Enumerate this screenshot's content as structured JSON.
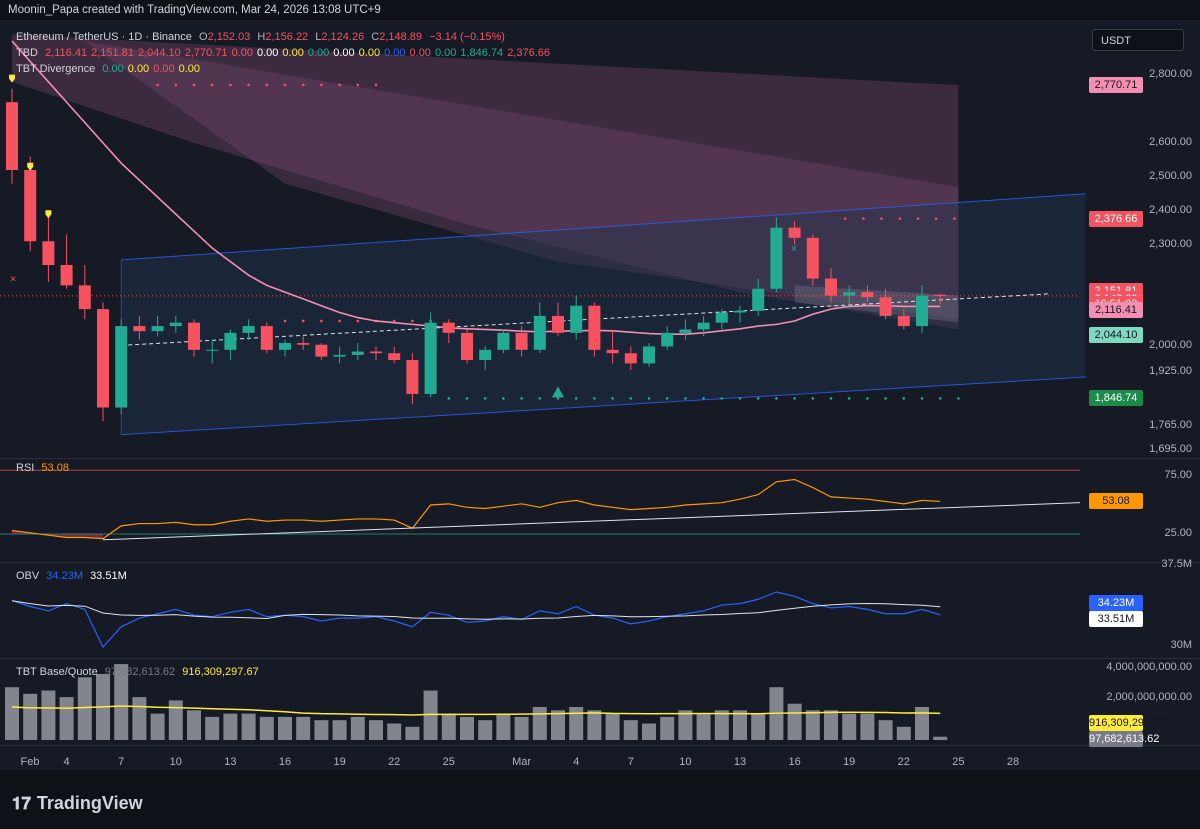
{
  "header": "Moonin_Papa created with TradingView.com, Mar 24, 2026 13:08 UTC+9",
  "symbol": {
    "name": "Ethereum / TetherUS · 1D · Binance",
    "o": "O",
    "o_val": "2,152.03",
    "h": "H",
    "h_val": "2,156.22",
    "l": "L",
    "l_val": "2,124.26",
    "c": "C",
    "c_val": "2,148.89",
    "chg": "−3.14 (−0.15%)"
  },
  "tbd": {
    "label": "TBD",
    "values": [
      "2,116.41",
      "2,151.81",
      "2,044.10",
      "2,770.71",
      "0.00",
      "0.00",
      "0.00",
      "0.00",
      "0.00",
      "0.00",
      "0.00",
      "0.00",
      "0.00",
      "1,846.74",
      "2,376.66"
    ],
    "colors": [
      "#f7525f",
      "#f7525f",
      "#f7525f",
      "#f7525f",
      "#f7525f",
      "#ffffff",
      "#ffeb3b",
      "#22ab94",
      "#ffffff",
      "#ffeb3b",
      "#2962ff",
      "#f7525f",
      "#22ab94",
      "#22ab94",
      "#f7525f"
    ]
  },
  "tbt_div": {
    "label": "TBT Divergence",
    "values": [
      "0.00",
      "0.00",
      "0.00",
      "0.00"
    ],
    "colors": [
      "#22ab94",
      "#ffeb3b",
      "#f7525f",
      "#ffeb3b"
    ]
  },
  "currency": "USDT",
  "price_axis": [
    "2,800.00",
    "2,600.00",
    "2,500.00",
    "2,400.00",
    "2,300.00",
    "2,000.00",
    "1,925.00",
    "1,765.00",
    "1,695.00"
  ],
  "price_badges": [
    {
      "text": "2,770.71",
      "bg": "#f48fb1",
      "fg": "#131722"
    },
    {
      "text": "2,376.66",
      "bg": "#f7525f",
      "fg": "#ffffff"
    },
    {
      "text": "2,151.81",
      "bg": "#f7525f",
      "fg": "#ffffff"
    },
    {
      "text": "2,148.89",
      "bg": "#f7525f",
      "fg": "#ffffff"
    },
    {
      "text": "19:51:03",
      "bg": "#f7525f",
      "fg": "#ffffff"
    },
    {
      "text": "2,116.41",
      "bg": "#f48fb1",
      "fg": "#131722"
    },
    {
      "text": "2,044.10",
      "bg": "#7fd8c0",
      "fg": "#131722"
    },
    {
      "text": "1,846.74",
      "bg": "#1e8a4a",
      "fg": "#ffffff"
    }
  ],
  "rsi": {
    "label": "RSI",
    "value": "53.08",
    "axis": [
      "75.00",
      "25.00"
    ],
    "badge": "53.08"
  },
  "obv": {
    "label": "OBV",
    "v1": "34.23M",
    "v2": "33.51M",
    "axis": [
      "37.5M",
      "30M"
    ],
    "badge1": "34.23M",
    "badge2": "33.51M"
  },
  "basequote": {
    "label": "TBT Base/Quote",
    "v1": "97,682,613.62",
    "v2": "916,309,297.67",
    "axis": [
      "4,000,000,000.00",
      "2,000,000,000.00"
    ],
    "badge1": "916,309,297.67",
    "badge2": "97,682,613.62"
  },
  "x_labels": [
    "Feb",
    "4",
    "7",
    "10",
    "13",
    "16",
    "19",
    "22",
    "25",
    "Mar",
    "4",
    "7",
    "10",
    "13",
    "16",
    "19",
    "22",
    "25",
    "28"
  ],
  "brand": "TradingView",
  "chart_data": {
    "type": "candlestick",
    "title": "Ethereum / TetherUS · 1D · Binance",
    "dates": [
      "Feb 1",
      "Feb 2",
      "Feb 3",
      "Feb 4",
      "Feb 5",
      "Feb 6",
      "Feb 7",
      "Feb 8",
      "Feb 9",
      "Feb 10",
      "Feb 11",
      "Feb 12",
      "Feb 13",
      "Feb 14",
      "Feb 15",
      "Feb 16",
      "Feb 17",
      "Feb 18",
      "Feb 19",
      "Feb 20",
      "Feb 21",
      "Feb 22",
      "Feb 23",
      "Feb 24",
      "Feb 25",
      "Feb 26",
      "Feb 27",
      "Feb 28",
      "Mar 1",
      "Mar 2",
      "Mar 3",
      "Mar 4",
      "Mar 5",
      "Mar 6",
      "Mar 7",
      "Mar 8",
      "Mar 9",
      "Mar 10",
      "Mar 11",
      "Mar 12",
      "Mar 13",
      "Mar 14",
      "Mar 15",
      "Mar 16",
      "Mar 17",
      "Mar 18",
      "Mar 19",
      "Mar 20",
      "Mar 21",
      "Mar 22",
      "Mar 23",
      "Mar 24"
    ],
    "ohlc": [
      [
        2720,
        2760,
        2480,
        2520
      ],
      [
        2520,
        2560,
        2280,
        2310
      ],
      [
        2310,
        2390,
        2190,
        2240
      ],
      [
        2240,
        2330,
        2170,
        2180
      ],
      [
        2180,
        2240,
        2080,
        2110
      ],
      [
        2110,
        2130,
        1780,
        1820
      ],
      [
        1820,
        2080,
        1800,
        2060
      ],
      [
        2060,
        2090,
        2020,
        2045
      ],
      [
        2045,
        2090,
        2030,
        2060
      ],
      [
        2060,
        2090,
        2040,
        2070
      ],
      [
        2070,
        2080,
        1970,
        1990
      ],
      [
        1990,
        2020,
        1950,
        1990
      ],
      [
        1990,
        2050,
        1960,
        2040
      ],
      [
        2040,
        2080,
        2020,
        2060
      ],
      [
        2060,
        2070,
        1980,
        1990
      ],
      [
        1990,
        2020,
        1970,
        2010
      ],
      [
        2010,
        2030,
        1990,
        2005
      ],
      [
        2005,
        2010,
        1960,
        1970
      ],
      [
        1970,
        2000,
        1950,
        1975
      ],
      [
        1975,
        2010,
        1960,
        1985
      ],
      [
        1985,
        2000,
        1960,
        1980
      ],
      [
        1980,
        2000,
        1950,
        1960
      ],
      [
        1960,
        1980,
        1830,
        1860
      ],
      [
        1860,
        2100,
        1850,
        2070
      ],
      [
        2070,
        2080,
        2010,
        2040
      ],
      [
        2040,
        2050,
        1950,
        1960
      ],
      [
        1960,
        2000,
        1930,
        1990
      ],
      [
        1990,
        2050,
        1980,
        2040
      ],
      [
        2040,
        2060,
        1970,
        1990
      ],
      [
        1990,
        2130,
        1980,
        2090
      ],
      [
        2090,
        2130,
        2030,
        2040
      ],
      [
        2040,
        2150,
        2020,
        2120
      ],
      [
        2120,
        2130,
        1970,
        1990
      ],
      [
        1990,
        2050,
        1950,
        1980
      ],
      [
        1980,
        2000,
        1930,
        1950
      ],
      [
        1950,
        2010,
        1940,
        2000
      ],
      [
        2000,
        2060,
        1990,
        2040
      ],
      [
        2040,
        2080,
        2020,
        2050
      ],
      [
        2050,
        2090,
        2030,
        2070
      ],
      [
        2070,
        2110,
        2050,
        2100
      ],
      [
        2100,
        2120,
        2070,
        2105
      ],
      [
        2105,
        2200,
        2090,
        2170
      ],
      [
        2170,
        2380,
        2160,
        2350
      ],
      [
        2350,
        2370,
        2300,
        2320
      ],
      [
        2320,
        2330,
        2180,
        2200
      ],
      [
        2200,
        2230,
        2130,
        2150
      ],
      [
        2150,
        2180,
        2120,
        2160
      ],
      [
        2160,
        2180,
        2130,
        2145
      ],
      [
        2145,
        2170,
        2080,
        2090
      ],
      [
        2090,
        2110,
        2050,
        2060
      ],
      [
        2060,
        2180,
        2040,
        2150
      ],
      [
        2152.03,
        2156.22,
        2124.26,
        2148.89
      ]
    ],
    "rsi": [
      28,
      26,
      24,
      22,
      22,
      21,
      32,
      34,
      34,
      35,
      33,
      33,
      36,
      38,
      36,
      37,
      37,
      36,
      37,
      38,
      38,
      37,
      30,
      50,
      51,
      48,
      47,
      49,
      51,
      48,
      52,
      54,
      50,
      48,
      46,
      47,
      48,
      50,
      51,
      52,
      55,
      59,
      70,
      72,
      65,
      57,
      56,
      55,
      53,
      51,
      54,
      53.08
    ],
    "obv": [
      35.2,
      34.8,
      34.5,
      35.0,
      34.6,
      32.0,
      33.4,
      34.0,
      34.3,
      34.6,
      34.2,
      34.1,
      34.4,
      34.6,
      34.1,
      34.2,
      34.1,
      33.8,
      34.0,
      34.0,
      34.1,
      33.8,
      33.4,
      34.4,
      34.2,
      33.7,
      33.8,
      34.1,
      33.9,
      34.5,
      34.3,
      34.8,
      34.2,
      34.0,
      33.6,
      33.8,
      34.1,
      34.3,
      34.5,
      34.9,
      35.0,
      35.3,
      35.8,
      35.5,
      35.0,
      34.7,
      34.8,
      34.6,
      34.3,
      34.3,
      34.6,
      34.23
    ],
    "base_quote": [
      1.6,
      1.4,
      1.5,
      1.3,
      1.9,
      2.0,
      2.3,
      1.3,
      0.8,
      1.2,
      0.9,
      0.7,
      0.8,
      0.8,
      0.7,
      0.7,
      0.7,
      0.6,
      0.6,
      0.7,
      0.6,
      0.5,
      0.4,
      1.5,
      0.8,
      0.7,
      0.6,
      0.8,
      0.7,
      1.0,
      0.9,
      1.0,
      0.9,
      0.8,
      0.6,
      0.5,
      0.7,
      0.9,
      0.8,
      0.9,
      0.9,
      0.8,
      1.6,
      1.1,
      0.9,
      0.9,
      0.8,
      0.8,
      0.6,
      0.4,
      1.0,
      0.1
    ]
  }
}
